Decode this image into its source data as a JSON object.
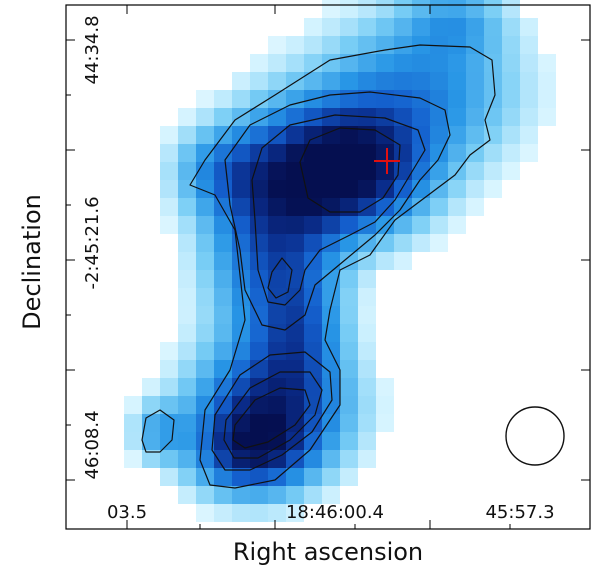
{
  "image": {
    "kind": "radio continuum map (contour + intensity image)",
    "colormap": "light cyan to dark navy (intensity)",
    "colors": {
      "background": "#ffffff",
      "frame": "#000000",
      "contour": "#111111",
      "marker": "#e01010",
      "low_intensity": "#cdeefe",
      "high_intensity": "#05105a"
    }
  },
  "axes": {
    "xlabel": "Right ascension",
    "ylabel": "Declination",
    "x_ticks": [
      "03.5",
      "18:46:00.4",
      "45:57.3"
    ],
    "y_ticks": [
      "44:34.8",
      "-2:45:21.6",
      "46:08.4"
    ]
  },
  "features": {
    "marker": "red cross",
    "beam": "circular beam ellipse (bottom-right)"
  }
}
